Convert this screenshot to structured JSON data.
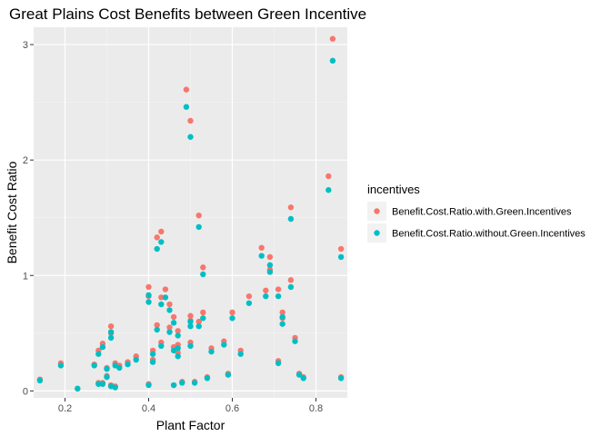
{
  "chart_data": {
    "type": "scatter",
    "title": "Great Plains Cost Benefits between Green Incentive",
    "xlabel": "Plant Factor",
    "ylabel": "Benefit Cost Ratio",
    "xlim": [
      0.125,
      0.875
    ],
    "ylim": [
      -0.06,
      3.15
    ],
    "xticks": [
      0.2,
      0.4,
      0.6,
      0.8
    ],
    "xtick_labels": [
      "0.2",
      "0.4",
      "0.6",
      "0.8"
    ],
    "yticks": [
      0,
      1,
      2,
      3
    ],
    "ytick_labels": [
      "0",
      "1",
      "2",
      "3"
    ],
    "grid": true,
    "legend": {
      "title": "incentives",
      "placement": "right"
    },
    "series": [
      {
        "name": "Benefit.Cost.Ratio.with.Green.Incentives",
        "color": "#F8766D",
        "x": [
          0.14,
          0.19,
          0.23,
          0.27,
          0.28,
          0.28,
          0.29,
          0.29,
          0.3,
          0.3,
          0.31,
          0.31,
          0.31,
          0.32,
          0.32,
          0.33,
          0.35,
          0.37,
          0.4,
          0.4,
          0.4,
          0.41,
          0.41,
          0.42,
          0.42,
          0.43,
          0.43,
          0.43,
          0.44,
          0.45,
          0.45,
          0.46,
          0.46,
          0.46,
          0.47,
          0.47,
          0.47,
          0.48,
          0.49,
          0.5,
          0.5,
          0.5,
          0.5,
          0.51,
          0.52,
          0.52,
          0.53,
          0.53,
          0.54,
          0.55,
          0.58,
          0.59,
          0.6,
          0.62,
          0.64,
          0.67,
          0.68,
          0.69,
          0.69,
          0.71,
          0.71,
          0.72,
          0.72,
          0.74,
          0.74,
          0.75,
          0.76,
          0.77,
          0.83,
          0.84,
          0.86,
          0.86
        ],
        "y": [
          0.1,
          0.24,
          0.02,
          0.23,
          0.07,
          0.35,
          0.07,
          0.41,
          0.2,
          0.13,
          0.56,
          0.5,
          0.05,
          0.04,
          0.24,
          0.22,
          0.25,
          0.3,
          0.9,
          0.82,
          0.06,
          0.35,
          0.27,
          1.33,
          0.57,
          1.38,
          0.81,
          0.42,
          0.88,
          0.75,
          0.55,
          0.64,
          0.38,
          0.05,
          0.52,
          0.33,
          0.4,
          0.08,
          2.61,
          2.34,
          0.65,
          0.61,
          0.42,
          0.08,
          1.52,
          0.6,
          0.68,
          1.07,
          0.12,
          0.37,
          0.43,
          0.15,
          0.68,
          0.35,
          0.82,
          1.24,
          0.87,
          1.16,
          1.05,
          0.88,
          0.26,
          0.68,
          0.63,
          1.59,
          0.96,
          0.46,
          0.15,
          0.12,
          1.86,
          3.05,
          1.23,
          0.12
        ],
        "marker": "circle"
      },
      {
        "name": "Benefit.Cost.Ratio.without.Green.Incentives",
        "color": "#00BFC4",
        "x": [
          0.14,
          0.19,
          0.23,
          0.27,
          0.28,
          0.28,
          0.29,
          0.29,
          0.3,
          0.3,
          0.31,
          0.31,
          0.31,
          0.32,
          0.32,
          0.33,
          0.35,
          0.37,
          0.4,
          0.4,
          0.4,
          0.41,
          0.41,
          0.42,
          0.42,
          0.43,
          0.43,
          0.43,
          0.44,
          0.45,
          0.45,
          0.46,
          0.46,
          0.46,
          0.47,
          0.47,
          0.47,
          0.48,
          0.49,
          0.5,
          0.5,
          0.5,
          0.5,
          0.51,
          0.52,
          0.52,
          0.53,
          0.53,
          0.54,
          0.55,
          0.58,
          0.59,
          0.6,
          0.62,
          0.64,
          0.67,
          0.68,
          0.69,
          0.69,
          0.71,
          0.71,
          0.72,
          0.72,
          0.74,
          0.74,
          0.75,
          0.76,
          0.77,
          0.83,
          0.84,
          0.86,
          0.86
        ],
        "y": [
          0.09,
          0.22,
          0.02,
          0.22,
          0.06,
          0.32,
          0.06,
          0.38,
          0.19,
          0.12,
          0.51,
          0.46,
          0.04,
          0.03,
          0.22,
          0.2,
          0.23,
          0.27,
          0.83,
          0.77,
          0.05,
          0.32,
          0.25,
          1.23,
          0.53,
          1.29,
          0.75,
          0.39,
          0.81,
          0.7,
          0.51,
          0.59,
          0.35,
          0.05,
          0.48,
          0.3,
          0.37,
          0.07,
          2.46,
          2.2,
          0.6,
          0.56,
          0.39,
          0.07,
          1.42,
          0.56,
          0.63,
          1.01,
          0.11,
          0.34,
          0.4,
          0.14,
          0.63,
          0.32,
          0.76,
          1.17,
          0.82,
          1.09,
          1.03,
          0.82,
          0.24,
          0.64,
          0.58,
          1.49,
          0.9,
          0.43,
          0.14,
          0.11,
          1.74,
          2.86,
          1.16,
          0.11
        ],
        "marker": "circle"
      }
    ]
  }
}
